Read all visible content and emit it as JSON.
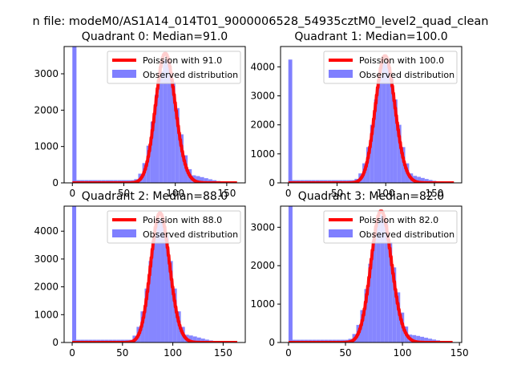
{
  "figure": {
    "suptitle": "n file: modeM0/AS1A14_014T01_9000006528_54935cztM0_level2_quad_clean"
  },
  "colors": {
    "hist": "#7f7fff",
    "poisson": "#ff0000",
    "legend_border": "#cccccc",
    "axis": "#000000"
  },
  "chart_data": [
    {
      "type": "bar",
      "title": "Quadrant 0: Median=91.0",
      "xlim": [
        -8,
        168
      ],
      "ylim": [
        0,
        3750
      ],
      "xticks": [
        0,
        50,
        100,
        150
      ],
      "yticks": [
        0,
        1000,
        2000,
        3000
      ],
      "legend": [
        "Poission with 91.0",
        "Observed distribution"
      ],
      "poisson_mean": 91,
      "peak": 3560,
      "hist_peak": 3400,
      "hist_x": [
        0,
        1,
        2,
        3,
        4,
        5,
        6,
        7,
        8,
        9,
        10,
        11,
        12,
        13,
        14,
        15,
        16,
        17,
        18,
        19,
        20,
        21,
        22,
        23,
        24,
        25,
        26,
        27,
        28,
        29,
        30,
        31,
        32,
        33,
        34,
        35,
        36,
        37,
        38,
        39
      ],
      "bin_width": 4,
      "bins_start": 0,
      "extra_bins": [
        {
          "x": 0,
          "value": 3750
        }
      ]
    },
    {
      "type": "bar",
      "title": "Quadrant 1: Median=100.0",
      "xlim": [
        -8,
        178
      ],
      "ylim": [
        0,
        4700
      ],
      "xticks": [
        0,
        50,
        100,
        150
      ],
      "yticks": [
        0,
        1000,
        2000,
        3000,
        4000
      ],
      "legend": [
        "Poission with 100.0",
        "Observed distribution"
      ],
      "poisson_mean": 100,
      "peak": 4380,
      "hist_peak": 4200,
      "bin_width": 4,
      "bins_start": 0,
      "extra_bins": [
        {
          "x": 0,
          "value": 4250
        }
      ]
    },
    {
      "type": "bar",
      "title": "Quadrant 2: Median=88.0",
      "xlim": [
        -8,
        172
      ],
      "ylim": [
        0,
        4900
      ],
      "xticks": [
        0,
        50,
        100,
        150
      ],
      "yticks": [
        0,
        1000,
        2000,
        3000,
        4000
      ],
      "legend": [
        "Poission with 88.0",
        "Observed distribution"
      ],
      "poisson_mean": 88,
      "peak": 4650,
      "hist_peak": 4500,
      "bin_width": 4,
      "bins_start": 0,
      "extra_bins": [
        {
          "x": 0,
          "value": 4900
        }
      ]
    },
    {
      "type": "bar",
      "title": "Quadrant 3: Median=82.0",
      "xlim": [
        -7,
        152
      ],
      "ylim": [
        0,
        3550
      ],
      "xticks": [
        0,
        50,
        100,
        150
      ],
      "yticks": [
        0,
        1000,
        2000,
        3000
      ],
      "legend": [
        "Poission with 82.0",
        "Observed distribution"
      ],
      "poisson_mean": 82,
      "peak": 3420,
      "hist_peak": 3330,
      "bin_width": 3.5,
      "bins_start": 0,
      "extra_bins": [
        {
          "x": 0,
          "value": 3550
        }
      ]
    }
  ]
}
